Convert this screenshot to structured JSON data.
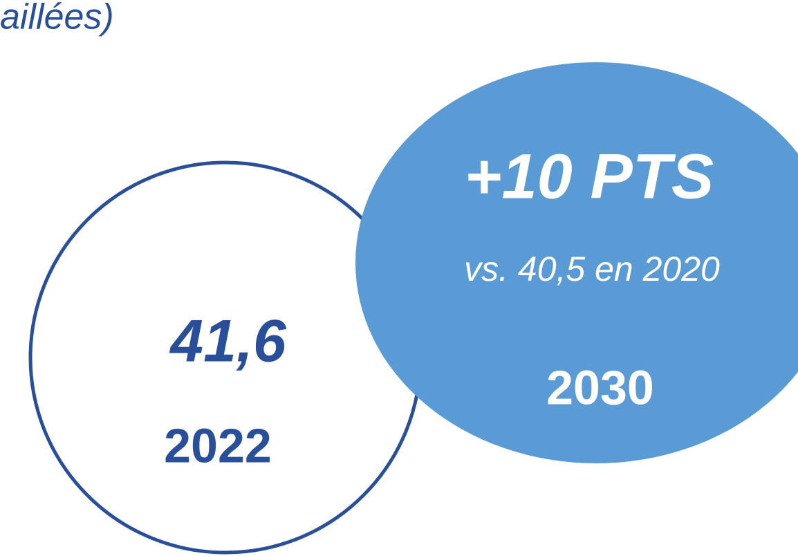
{
  "header": {
    "title_fragment": "aillées)"
  },
  "circles": [
    {
      "value": "41,6",
      "year": "2022"
    },
    {
      "value": "+10 PTS",
      "comparison": "vs. 40,5 en 2020",
      "year": "2030"
    }
  ]
}
